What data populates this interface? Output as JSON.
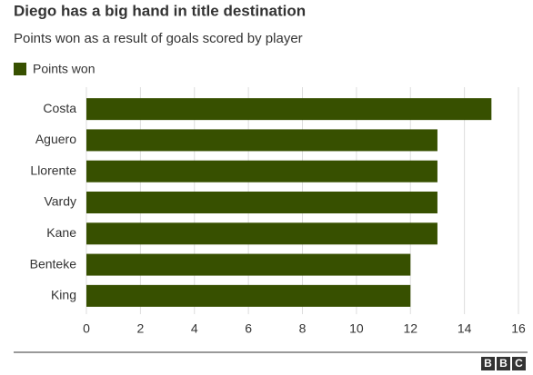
{
  "chart_data": {
    "type": "bar",
    "orientation": "horizontal",
    "title": "Diego has a big hand in title destination",
    "subtitle": "Points won as a result of goals scored by player",
    "categories": [
      "Costa",
      "Aguero",
      "Llorente",
      "Vardy",
      "Kane",
      "Benteke",
      "King"
    ],
    "series": [
      {
        "name": "Points won",
        "color": "#375000",
        "values": [
          15,
          13,
          13,
          13,
          13,
          12,
          12
        ]
      }
    ],
    "xlim": [
      0,
      16
    ],
    "xticks": [
      0,
      2,
      4,
      6,
      8,
      10,
      12,
      14,
      16
    ],
    "grid": true,
    "logo": "BBC"
  }
}
